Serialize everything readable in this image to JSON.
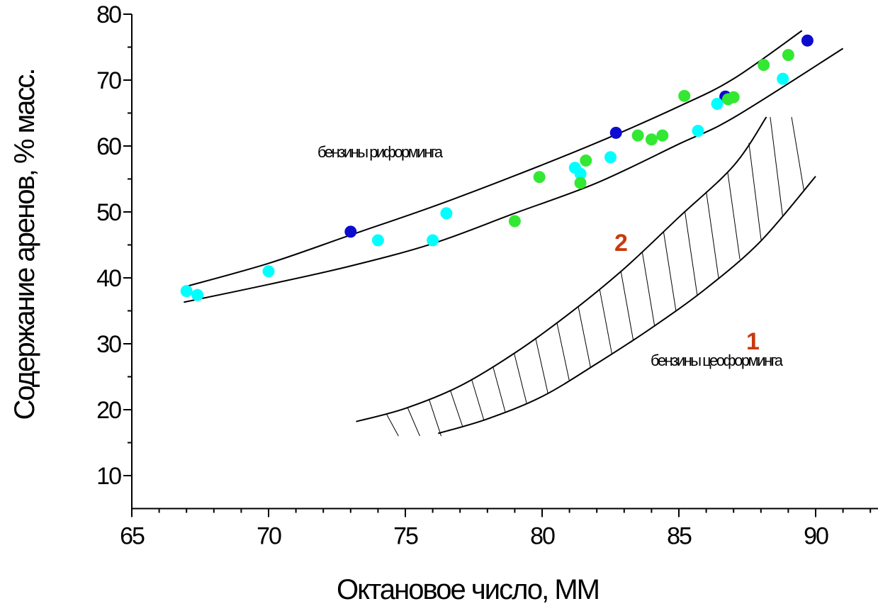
{
  "chart_data": {
    "type": "scatter",
    "title": "",
    "xlabel": "Октановое число, ММ",
    "ylabel": "Содержание аренов, % масс.",
    "xlim": [
      65,
      92.5
    ],
    "ylim": [
      5,
      80
    ],
    "xticks": [
      "65",
      "70",
      "75",
      "80",
      "85",
      "90"
    ],
    "yticks": [
      "10",
      "20",
      "30",
      "40",
      "50",
      "60",
      "70",
      "80"
    ],
    "grid": false,
    "series": [
      {
        "color": "#0c0cd0",
        "points": [
          [
            73.0,
            47.0
          ],
          [
            82.7,
            62.0
          ],
          [
            86.7,
            67.5
          ],
          [
            89.7,
            76.0
          ]
        ]
      },
      {
        "color": "#00ffff",
        "points": [
          [
            67.0,
            38.0
          ],
          [
            67.4,
            37.4
          ],
          [
            70.0,
            41.0
          ],
          [
            74.0,
            45.7
          ],
          [
            76.0,
            45.7
          ],
          [
            76.5,
            49.8
          ],
          [
            81.2,
            56.7
          ],
          [
            81.4,
            55.8
          ],
          [
            82.5,
            58.3
          ],
          [
            85.7,
            62.3
          ],
          [
            86.4,
            66.4
          ],
          [
            88.8,
            70.2
          ]
        ]
      },
      {
        "color": "#33e833",
        "points": [
          [
            79.0,
            48.6
          ],
          [
            79.9,
            55.3
          ],
          [
            81.4,
            54.4
          ],
          [
            81.6,
            57.8
          ],
          [
            83.5,
            61.6
          ],
          [
            84.0,
            61.0
          ],
          [
            84.4,
            61.6
          ],
          [
            85.2,
            67.6
          ],
          [
            86.8,
            67.1
          ],
          [
            87.0,
            67.4
          ],
          [
            88.1,
            72.3
          ],
          [
            89.0,
            73.8
          ]
        ]
      }
    ],
    "bands": {
      "reforming": {
        "label": "бензины риформинга",
        "upper": [
          [
            66.9,
            38.6
          ],
          [
            70,
            42.2
          ],
          [
            73,
            46.5
          ],
          [
            76,
            50.8
          ],
          [
            79,
            55.5
          ],
          [
            82,
            60.5
          ],
          [
            85,
            66.0
          ],
          [
            87,
            70.2
          ],
          [
            89.5,
            77.5
          ]
        ],
        "lower": [
          [
            66.9,
            36.3
          ],
          [
            70,
            39.0
          ],
          [
            73,
            41.8
          ],
          [
            76,
            45.2
          ],
          [
            79,
            49.8
          ],
          [
            82,
            54.4
          ],
          [
            85,
            60.3
          ],
          [
            87,
            64.3
          ],
          [
            91,
            74.8
          ]
        ]
      },
      "zeoforming": {
        "number": "1",
        "label": "бензины цеоформинга",
        "upper": [
          [
            73.2,
            18.2
          ],
          [
            75,
            20.2
          ],
          [
            77,
            23.6
          ],
          [
            79,
            28.6
          ],
          [
            81,
            34.6
          ],
          [
            83,
            41.4
          ],
          [
            85,
            49.2
          ],
          [
            87,
            57.0
          ],
          [
            88.2,
            64.4
          ]
        ],
        "lower": [
          [
            76.2,
            16.4
          ],
          [
            78,
            18.6
          ],
          [
            80,
            22.0
          ],
          [
            82,
            27.0
          ],
          [
            84,
            32.4
          ],
          [
            86,
            38.4
          ],
          [
            88,
            45.6
          ],
          [
            90,
            55.4
          ]
        ]
      },
      "reforming_marker": {
        "number": "2"
      }
    }
  }
}
